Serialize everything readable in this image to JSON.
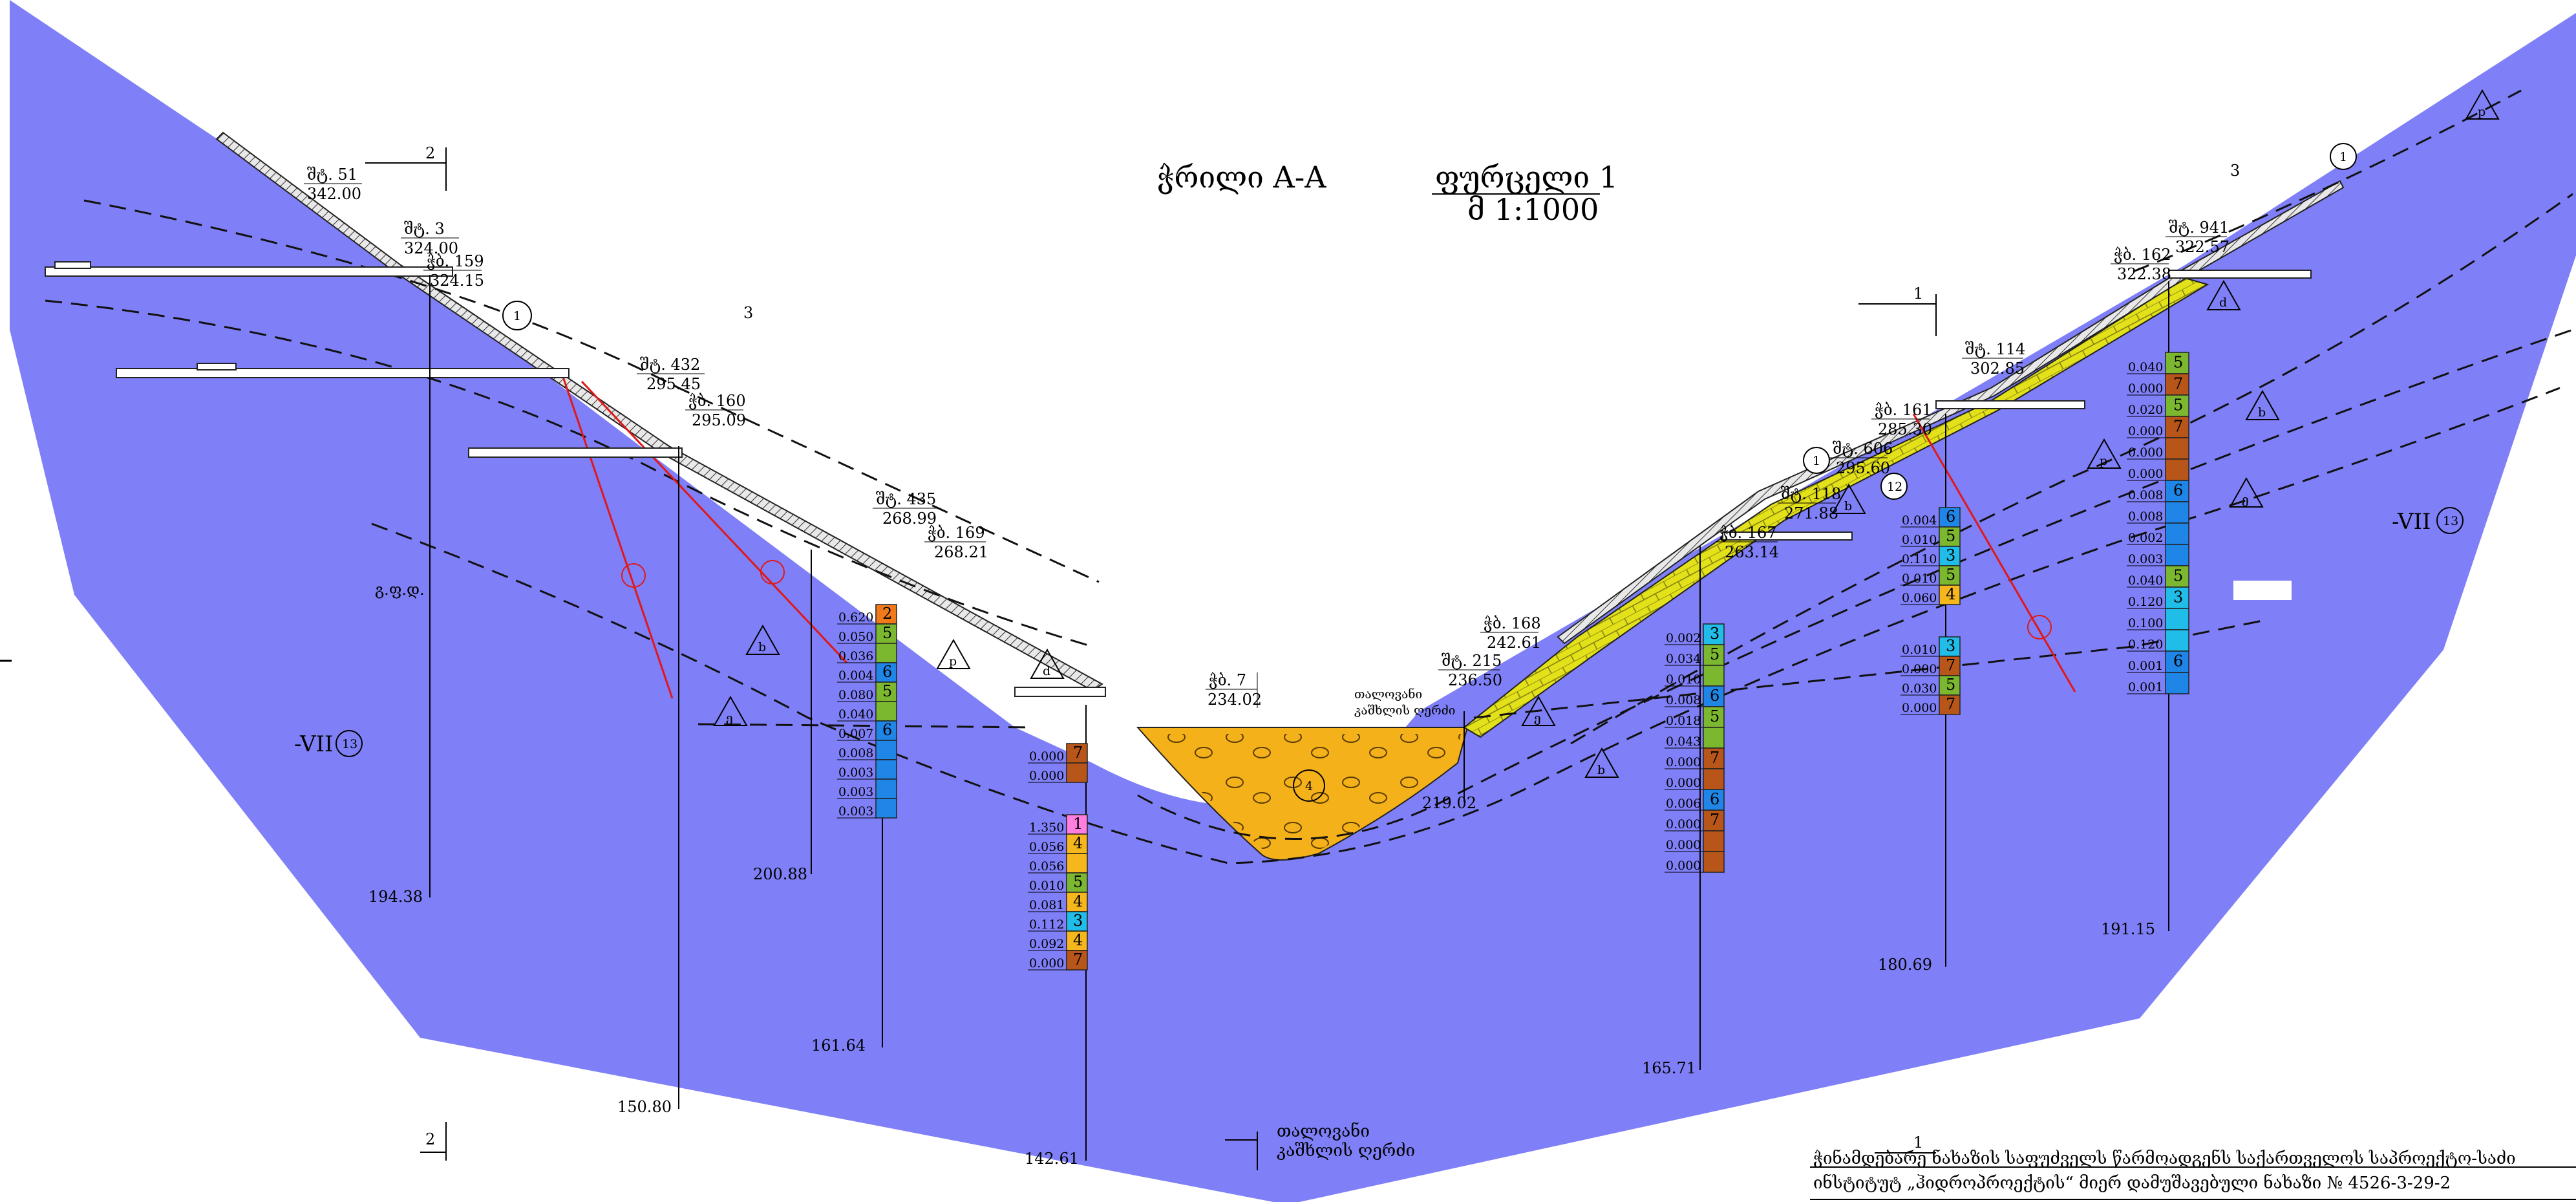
{
  "title": {
    "section": "ჭრილი A-A",
    "sheet": "ფურცელი 1",
    "scale": "მ 1:1000"
  },
  "layer_labels": {
    "left_vii": "-VII",
    "left_vii_num": "13",
    "right_vii": "-VII",
    "right_vii_num": "13",
    "shiftcode": "გ.ფ.დ.",
    "shiftcode_num": "3"
  },
  "section_markers": {
    "top_left": "2",
    "bottom_left": "2",
    "top_right": "1",
    "bottom_right": "1"
  },
  "river": {
    "label_line1": "თალოვანი",
    "label_line2": "კაშხლის ღერძი",
    "mid_line1": "თალოვანი",
    "mid_line2": "კაშხლის ღერძი"
  },
  "stations": [
    {
      "id": "st51",
      "name": "შტ. 51",
      "elev": "342.00"
    },
    {
      "id": "st3",
      "name": "შტ. 3",
      "elev": "324.00"
    },
    {
      "id": "bh159",
      "name": "ჭბ. 159",
      "elev": "324.15"
    },
    {
      "id": "st432",
      "name": "შტ. 432",
      "elev": "295.45"
    },
    {
      "id": "bh160",
      "name": "ჭბ. 160",
      "elev": "295.09"
    },
    {
      "id": "st435",
      "name": "შტ. 435",
      "elev": "268.99"
    },
    {
      "id": "bh169",
      "name": "ჭბ. 169",
      "elev": "268.21"
    },
    {
      "id": "bh7",
      "name": "ჭბ. 7",
      "elev": "234.02"
    },
    {
      "id": "bh168",
      "name": "ჭბ. 168",
      "elev": "242.61"
    },
    {
      "id": "st215",
      "name": "შტ. 215",
      "elev": "236.50"
    },
    {
      "id": "bh167",
      "name": "ჭბ. 167",
      "elev": "263.14"
    },
    {
      "id": "st118",
      "name": "შტ. 118",
      "elev": "271.88"
    },
    {
      "id": "st606",
      "name": "შტ. 606",
      "elev": "295.60"
    },
    {
      "id": "bh161",
      "name": "ჭბ. 161",
      "elev": "285.30"
    },
    {
      "id": "st114",
      "name": "შტ. 114",
      "elev": "302.85"
    },
    {
      "id": "bh162",
      "name": "ჭბ. 162",
      "elev": "322.38"
    },
    {
      "id": "st941",
      "name": "შტ. 941",
      "elev": "322.57"
    }
  ],
  "bottom_depths": {
    "d1": "194.38",
    "d2": "150.80",
    "d3": "200.88",
    "d4": "161.64",
    "d5": "142.61",
    "d6": "219.02",
    "d7": "165.71",
    "d8": "180.69",
    "d9": "191.15"
  },
  "columns": [
    {
      "id": "c169",
      "cells": [
        {
          "n": "2",
          "c": "#f07a1a",
          "v": "0.620"
        },
        {
          "n": "5",
          "c": "#7cb82f",
          "v": "0.050"
        },
        {
          "n": "",
          "c": "#7cb82f",
          "v": "0.036"
        },
        {
          "n": "6",
          "c": "#1f86e8",
          "v": "0.004"
        },
        {
          "n": "5",
          "c": "#7cb82f",
          "v": "0.080"
        },
        {
          "n": "",
          "c": "#7cb82f",
          "v": "0.040"
        },
        {
          "n": "6",
          "c": "#1f86e8",
          "v": "0.007"
        },
        {
          "n": "",
          "c": "#1f86e8",
          "v": "0.008"
        },
        {
          "n": "",
          "c": "#1f86e8",
          "v": "0.003"
        },
        {
          "n": "",
          "c": "#1f86e8",
          "v": "0.003"
        },
        {
          "n": "",
          "c": "#1f86e8",
          "v": "0.003"
        }
      ]
    },
    {
      "id": "c7",
      "cells": [
        {
          "n": "7",
          "c": "#b8561a",
          "v": "0.000"
        },
        {
          "n": "",
          "c": "#b8561a",
          "v": "0.000"
        },
        {
          "n": "1",
          "c": "#ff7ee0",
          "v": "1.350"
        },
        {
          "n": "4",
          "c": "#f6b71d",
          "v": "0.056"
        },
        {
          "n": "",
          "c": "#f6b71d",
          "v": "0.056"
        },
        {
          "n": "5",
          "c": "#7cb82f",
          "v": "0.010"
        },
        {
          "n": "4",
          "c": "#f6b71d",
          "v": "0.081"
        },
        {
          "n": "3",
          "c": "#1fbde8",
          "v": "0.112"
        },
        {
          "n": "4",
          "c": "#f6b71d",
          "v": "0.092"
        },
        {
          "n": "7",
          "c": "#b8561a",
          "v": "0.000"
        }
      ]
    },
    {
      "id": "c167",
      "cells": [
        {
          "n": "3",
          "c": "#1fbde8",
          "v": "0.002"
        },
        {
          "n": "5",
          "c": "#7cb82f",
          "v": "0.034"
        },
        {
          "n": "",
          "c": "#7cb82f",
          "v": "0.010"
        },
        {
          "n": "6",
          "c": "#1f86e8",
          "v": "0.008"
        },
        {
          "n": "5",
          "c": "#7cb82f",
          "v": "0.018"
        },
        {
          "n": "",
          "c": "#7cb82f",
          "v": "0.043"
        },
        {
          "n": "7",
          "c": "#b8561a",
          "v": "0.000"
        },
        {
          "n": "",
          "c": "#b8561a",
          "v": "0.000"
        },
        {
          "n": "6",
          "c": "#1f86e8",
          "v": "0.006"
        },
        {
          "n": "7",
          "c": "#b8561a",
          "v": "0.000"
        },
        {
          "n": "",
          "c": "#b8561a",
          "v": "0.000"
        },
        {
          "n": "",
          "c": "#b8561a",
          "v": "0.000"
        }
      ]
    },
    {
      "id": "c161",
      "cells": [
        {
          "n": "6",
          "c": "#1f86e8",
          "v": "0.004"
        },
        {
          "n": "5",
          "c": "#7cb82f",
          "v": "0.010"
        },
        {
          "n": "3",
          "c": "#1fbde8",
          "v": "0.110"
        },
        {
          "n": "5",
          "c": "#7cb82f",
          "v": "0.010"
        },
        {
          "n": "4",
          "c": "#f6b71d",
          "v": "0.060"
        },
        {
          "n": "3",
          "c": "#1fbde8",
          "v": "0.010"
        },
        {
          "n": "7",
          "c": "#b8561a",
          "v": "0.000"
        },
        {
          "n": "5",
          "c": "#7cb82f",
          "v": "0.030"
        },
        {
          "n": "7",
          "c": "#b8561a",
          "v": "0.000"
        }
      ]
    },
    {
      "id": "c162",
      "cells": [
        {
          "n": "5",
          "c": "#7cb82f",
          "v": "0.040"
        },
        {
          "n": "7",
          "c": "#b8561a",
          "v": "0.000"
        },
        {
          "n": "5",
          "c": "#7cb82f",
          "v": "0.020"
        },
        {
          "n": "7",
          "c": "#b8561a",
          "v": "0.000"
        },
        {
          "n": "",
          "c": "#b8561a",
          "v": "0.000"
        },
        {
          "n": "",
          "c": "#b8561a",
          "v": "0.000"
        },
        {
          "n": "6",
          "c": "#1f86e8",
          "v": "0.008"
        },
        {
          "n": "",
          "c": "#1f86e8",
          "v": "0.008"
        },
        {
          "n": "",
          "c": "#1f86e8",
          "v": "0.002"
        },
        {
          "n": "",
          "c": "#1f86e8",
          "v": "0.003"
        },
        {
          "n": "5",
          "c": "#7cb82f",
          "v": "0.040"
        },
        {
          "n": "3",
          "c": "#1fbde8",
          "v": "0.120"
        },
        {
          "n": "",
          "c": "#1fbde8",
          "v": "0.100"
        },
        {
          "n": "",
          "c": "#1fbde8",
          "v": "0.120"
        },
        {
          "n": "6",
          "c": "#1f86e8",
          "v": "0.001"
        },
        {
          "n": "",
          "c": "#1f86e8",
          "v": "0.001"
        }
      ]
    }
  ],
  "footer": {
    "line1": "ჭინამდებარე ნახაზის საფუძველს წარმოადგენს საქართველოს საპროექტო-საძი",
    "line2": "ინსტიტუტ „ჰიდროპროექტის“ მიერ დამუშავებული ნახაზი № 4526-3-29-2"
  },
  "colors": {
    "rock": "#7f7ff7",
    "alluvium": "#f5b11a",
    "slope_deposit": "#e3e11a",
    "surface_band": "#cfcfcf",
    "fault": "#e01818"
  },
  "circle_marks": [
    "1",
    "4",
    "12",
    "1",
    "13",
    "13"
  ],
  "triangle_marks": [
    "b",
    "p",
    "d",
    "ე",
    "b",
    "p",
    "ე",
    "b",
    "d",
    "ე",
    "b",
    "p",
    "b"
  ]
}
